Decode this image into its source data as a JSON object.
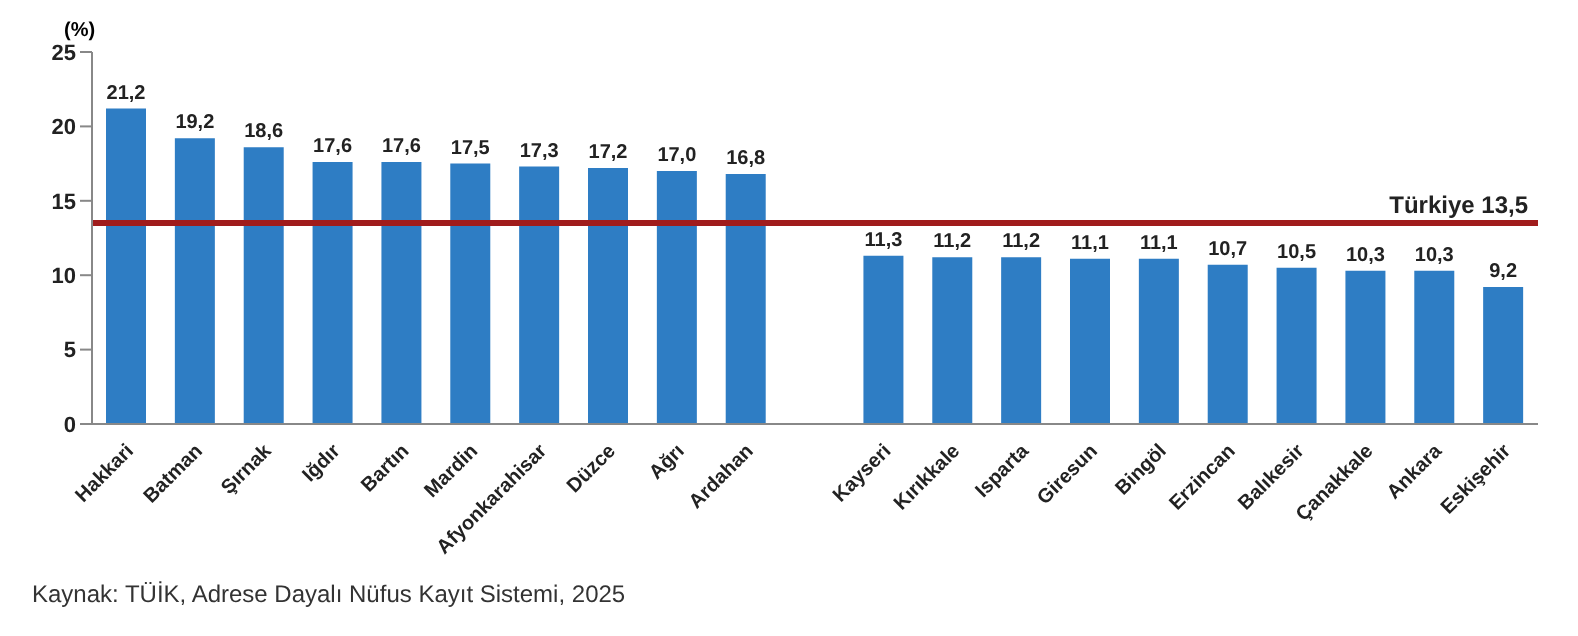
{
  "chart_data": {
    "type": "bar",
    "ylabel": "(%)",
    "categories": [
      "Hakkari",
      "Batman",
      "Şırnak",
      "Iğdır",
      "Bartın",
      "Mardin",
      "Afyonkarahisar",
      "Düzce",
      "Ağrı",
      "Ardahan",
      null,
      "Kayseri",
      "Kırıkkale",
      "Isparta",
      "Giresun",
      "Bingöl",
      "Erzincan",
      "Balıkesir",
      "Çanakkale",
      "Ankara",
      "Eskişehir"
    ],
    "values": [
      21.2,
      19.2,
      18.6,
      17.6,
      17.6,
      17.5,
      17.3,
      17.2,
      17.0,
      16.8,
      null,
      11.3,
      11.2,
      11.2,
      11.1,
      11.1,
      10.7,
      10.5,
      10.3,
      10.3,
      9.2
    ],
    "value_labels": [
      "21,2",
      "19,2",
      "18,6",
      "17,6",
      "17,6",
      "17,5",
      "17,3",
      "17,2",
      "17,0",
      "16,8",
      null,
      "11,3",
      "11,2",
      "11,2",
      "11,1",
      "11,1",
      "10,7",
      "10,5",
      "10,3",
      "10,3",
      "9,2"
    ],
    "color": "#2e7dc4",
    "ylim": [
      0,
      25
    ],
    "yticks": [
      0,
      5,
      10,
      15,
      20,
      25
    ],
    "grid": false,
    "ref_lines": [
      {
        "axis": "y",
        "value": 13.5,
        "label": "Türkiye 13,5",
        "color": "#a01c1c"
      }
    ],
    "annotations": [
      "Kaynak: TÜİK, Adrese Dayalı Nüfus Kayıt Sistemi, 2025"
    ]
  }
}
